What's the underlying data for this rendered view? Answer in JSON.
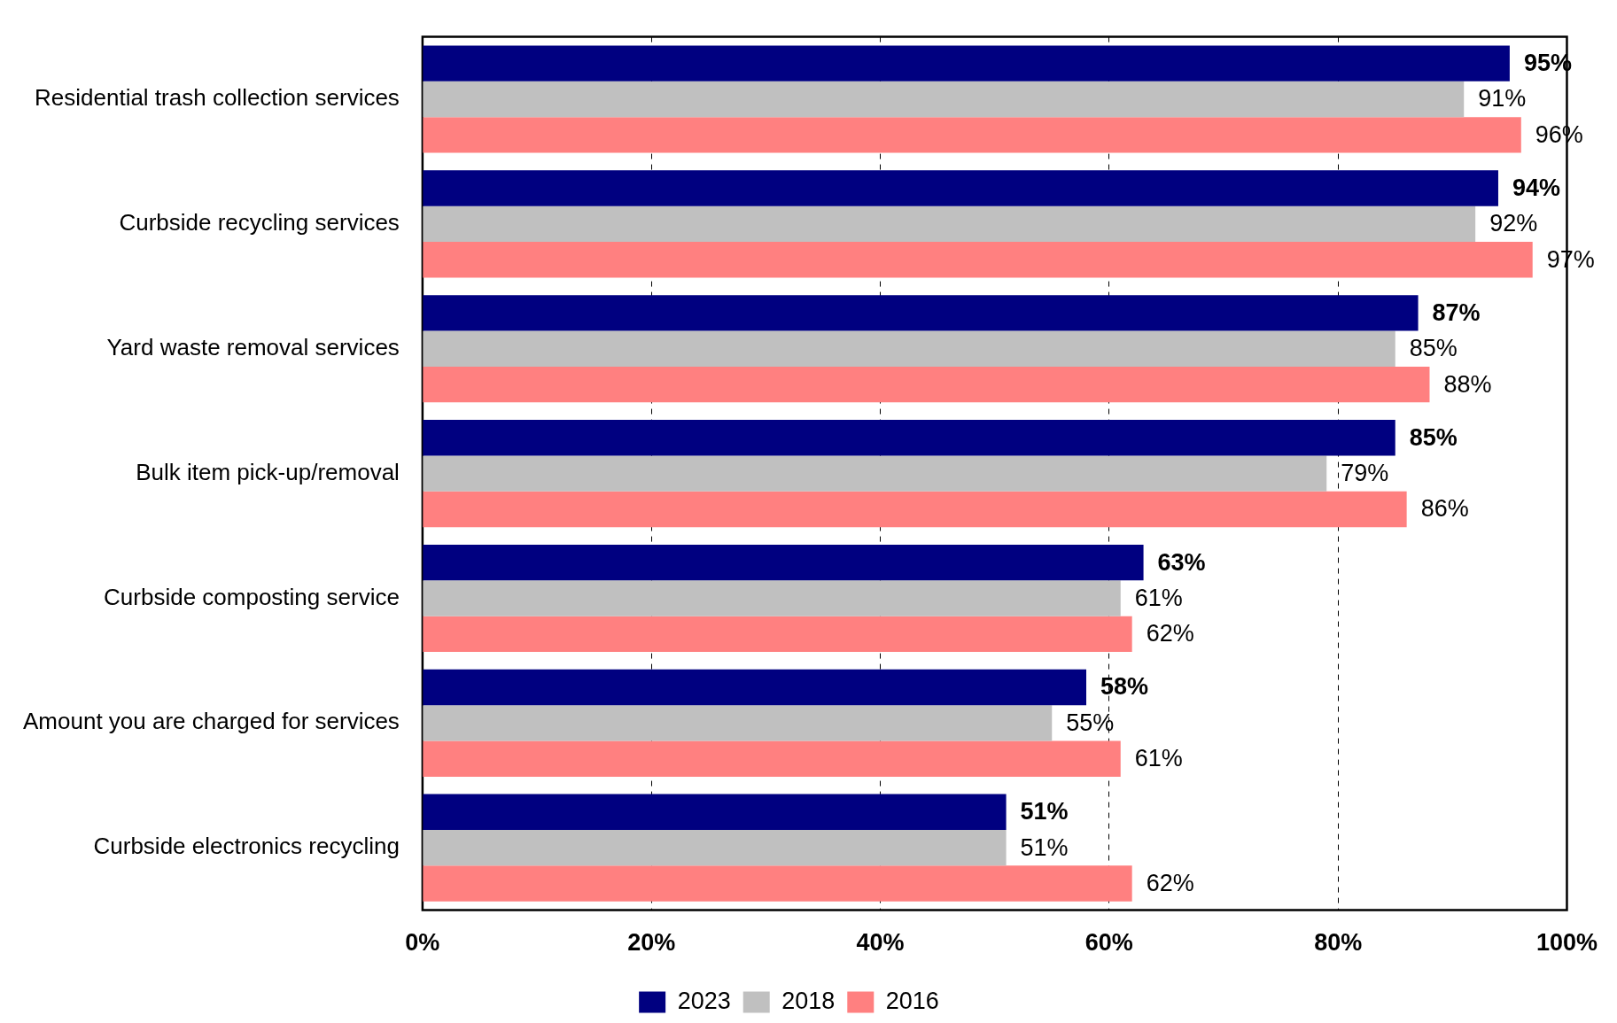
{
  "chart_data": {
    "type": "bar",
    "orientation": "horizontal",
    "categories": [
      "Residential trash collection services",
      "Curbside recycling services",
      "Yard waste removal services",
      "Bulk item pick-up/removal",
      "Curbside composting service",
      "Amount you are charged for services",
      "Curbside electronics recycling"
    ],
    "series": [
      {
        "name": "2023",
        "color": "#000080",
        "values": [
          95,
          94,
          87,
          85,
          63,
          58,
          51
        ],
        "value_labels": [
          "95%",
          "94%",
          "87%",
          "85%",
          "63%",
          "58%",
          "51%"
        ]
      },
      {
        "name": "2018",
        "color": "#c0c0c0",
        "values": [
          91,
          92,
          85,
          79,
          61,
          55,
          51
        ],
        "value_labels": [
          "91%",
          "92%",
          "85%",
          "79%",
          "61%",
          "55%",
          "51%"
        ]
      },
      {
        "name": "2016",
        "color": "#ff8080",
        "values": [
          96,
          97,
          88,
          86,
          62,
          61,
          62
        ],
        "value_labels": [
          "96%",
          "97%",
          "88%",
          "86%",
          "62%",
          "61%",
          "62%"
        ]
      }
    ],
    "xlim": [
      0,
      100
    ],
    "xticks": [
      {
        "value": 0,
        "label": "0%"
      },
      {
        "value": 20,
        "label": "20%"
      },
      {
        "value": 40,
        "label": "40%"
      },
      {
        "value": 60,
        "label": "60%"
      },
      {
        "value": 80,
        "label": "80%"
      },
      {
        "value": 100,
        "label": "100%"
      }
    ],
    "grid": "x",
    "line_style": "dashed",
    "legend": "bottom"
  }
}
